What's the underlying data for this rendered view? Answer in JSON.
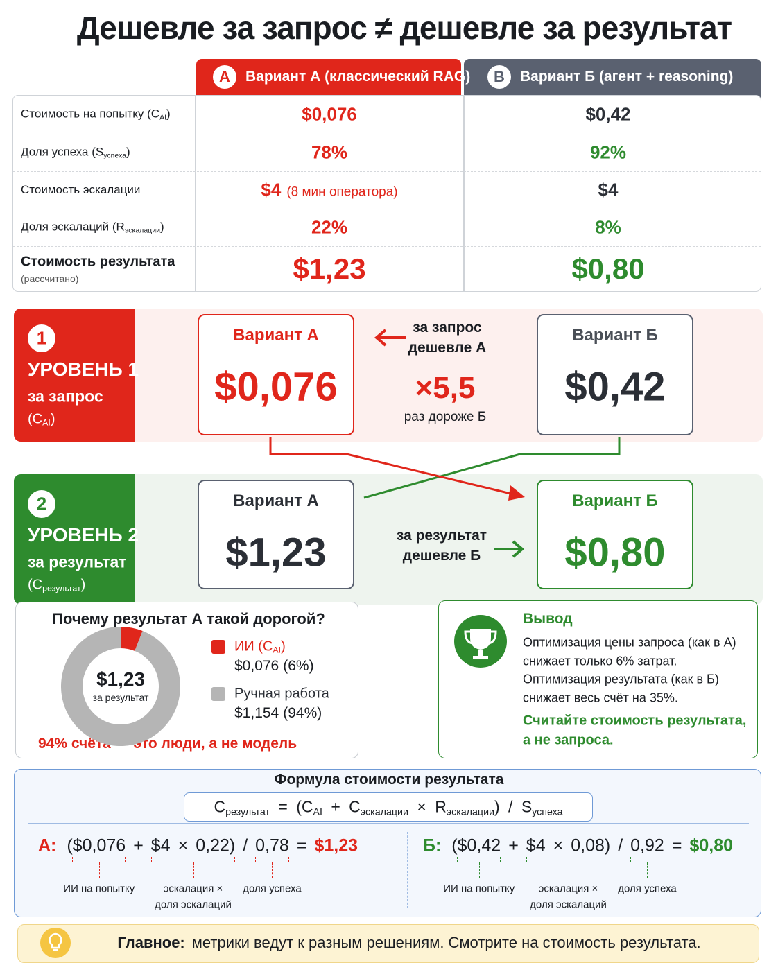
{
  "title": "Дешевле за запрос ≠ дешевле за результат",
  "table": {
    "columns": [
      {
        "badge": "A",
        "label": "Вариант А (классический RAG)"
      },
      {
        "badge": "B",
        "label": "Вариант Б (агент + reasoning)"
      }
    ],
    "rows": [
      {
        "label": [
          "Стоимость на попытку (C",
          "AI",
          ")"
        ],
        "a": "$0,076",
        "b": "$0,42"
      },
      {
        "label": [
          "Доля успеха (S",
          "успеха",
          ")"
        ],
        "a": "78%",
        "b": "92%"
      },
      {
        "label": [
          "Стоимость эскалации"
        ],
        "a": "$4",
        "a_note": "(8 мин оператора)",
        "b": "$4"
      },
      {
        "label": [
          "Доля эскалаций (R",
          "эскалации",
          ")"
        ],
        "a": "22%",
        "b": "8%"
      },
      {
        "label": [
          "Стоимость результата"
        ],
        "sublabel": "(рассчитано)",
        "a": "$1,23",
        "b": "$0,80"
      }
    ]
  },
  "level1": {
    "number": "1",
    "title": "УРОВЕНЬ 1",
    "subtitle": "за запрос",
    "symbol": [
      "(C",
      "AI",
      ")"
    ],
    "card_a": {
      "label": "Вариант А",
      "value": "$0,076"
    },
    "card_b": {
      "label": "Вариант Б",
      "value": "$0,42"
    },
    "note": [
      "за запрос",
      "дешевле А"
    ],
    "ratio": "×5,5",
    "ratio_note": "раз дороже Б"
  },
  "level2": {
    "number": "2",
    "title": "УРОВЕНЬ 2",
    "subtitle": "за результат",
    "symbol": [
      "(C",
      "результат",
      ")"
    ],
    "card_a": {
      "label": "Вариант А",
      "value": "$1,23"
    },
    "card_b": {
      "label": "Вариант Б",
      "value": "$0,80"
    },
    "note": [
      "за результат",
      "дешевле Б"
    ]
  },
  "breakdown": {
    "title": "Почему результат А такой дорогой?",
    "center_value": "$1,23",
    "center_label": "за результат",
    "items": [
      {
        "label": [
          "ИИ (C",
          "AI",
          ")"
        ],
        "amount": "$0,076",
        "share": 6,
        "share_label": "(6%)",
        "color": "#e0261b"
      },
      {
        "label": [
          "Ручная работа"
        ],
        "amount": "$1,154",
        "share": 94,
        "share_label": "(94%)",
        "color": "#b5b5b5"
      }
    ],
    "footnote": "94% счёта — это люди, а не модель"
  },
  "conclusion": {
    "title": "Вывод",
    "lines": [
      "Оптимизация цены запроса (как в А)",
      "снижает только 6% затрат.",
      "Оптимизация результата (как в Б)",
      "снижает весь счёт на 35%."
    ],
    "call": [
      "Считайте стоимость результата,",
      "а не запроса."
    ]
  },
  "formula": {
    "title": "Формула стоимости результата",
    "expression": [
      "C",
      "результат",
      " = (C",
      "AI",
      " + C",
      "эскалации",
      " × R",
      "эскалации",
      ") / S",
      "успеха"
    ],
    "examples": [
      {
        "label": "А:",
        "parts": [
          "($0,076",
          "+",
          "$4",
          "×",
          "0,22)",
          "/",
          "0,78",
          "=",
          "$1,23"
        ],
        "notes": [
          [
            "ИИ на попытку"
          ],
          [
            "эскалация ×",
            "доля эскалаций"
          ],
          [
            "доля успеха"
          ]
        ]
      },
      {
        "label": "Б:",
        "parts": [
          "($0,42",
          "+",
          "$4",
          "×",
          "0,08)",
          "/",
          "0,92",
          "=",
          "$0,80"
        ],
        "notes": [
          [
            "ИИ на попытку"
          ],
          [
            "эскалация ×",
            "доля эскалаций"
          ],
          [
            "доля успеха"
          ]
        ]
      }
    ]
  },
  "footer": {
    "label": "Главное:",
    "text": "метрики ведут к разным решениям. Смотрите на стоимость результата."
  }
}
